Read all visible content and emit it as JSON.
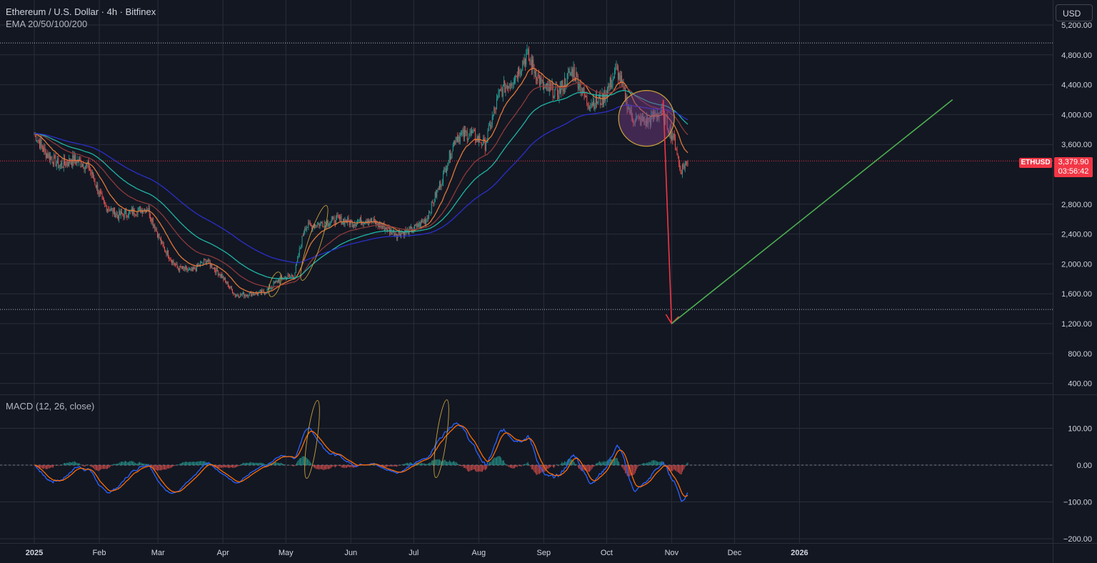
{
  "header": {
    "title": "Ethereum / U.S. Dollar · 4h · Bitfinex",
    "indicator": "EMA 20/50/100/200"
  },
  "currency_button": "USD",
  "last_price": {
    "symbol": "ETHUSD",
    "value": "3,379.90",
    "countdown": "03:56:42"
  },
  "macd_label": "MACD (12, 26, close)",
  "colors": {
    "background": "#131722",
    "grid": "#2a2e39",
    "candle_up": "#26a69a",
    "candle_down": "#ef5350",
    "ema20": "#e0773a",
    "ema50": "#8b3a3a",
    "ema100": "#1fb5a5",
    "ema200": "#2a2fc9",
    "macd_line": "#2962ff",
    "signal_line": "#ff6d00",
    "last_price": "#f23645",
    "down_arrow": "#f23645",
    "up_trend_line": "#4caf50",
    "highlight_circle": "#7b3f8a"
  },
  "chart_data": [
    {
      "type": "candlestick",
      "title": "Ethereum / U.S. Dollar · 4h · Bitfinex",
      "y_axis_ticks": [
        "5,200.00",
        "4,800.00",
        "4,400.00",
        "4,000.00",
        "3,600.00",
        "2,800.00",
        "2,400.00",
        "2,000.00",
        "1,600.00",
        "1,200.00",
        "800.00",
        "400.00"
      ],
      "x_axis_labels": [
        "2025",
        "Feb",
        "Mar",
        "Apr",
        "May",
        "Jun",
        "Jul",
        "Aug",
        "Sep",
        "Oct",
        "Nov",
        "Dec",
        "2026"
      ],
      "ylim": [
        250,
        5400
      ],
      "last_price": 3379.9,
      "horizontal_levels": [
        4960,
        1390
      ],
      "price_path": [
        {
          "x": "2025-01-01",
          "y": 3750
        },
        {
          "x": "2025-01-06",
          "y": 3500
        },
        {
          "x": "2025-01-13",
          "y": 3320
        },
        {
          "x": "2025-01-20",
          "y": 3400
        },
        {
          "x": "2025-01-27",
          "y": 3300
        },
        {
          "x": "2025-02-03",
          "y": 2800
        },
        {
          "x": "2025-02-10",
          "y": 2650
        },
        {
          "x": "2025-02-17",
          "y": 2700
        },
        {
          "x": "2025-02-24",
          "y": 2750
        },
        {
          "x": "2025-03-03",
          "y": 2250
        },
        {
          "x": "2025-03-10",
          "y": 1950
        },
        {
          "x": "2025-03-17",
          "y": 1900
        },
        {
          "x": "2025-03-24",
          "y": 2050
        },
        {
          "x": "2025-03-31",
          "y": 1850
        },
        {
          "x": "2025-04-07",
          "y": 1580
        },
        {
          "x": "2025-04-14",
          "y": 1600
        },
        {
          "x": "2025-04-21",
          "y": 1620
        },
        {
          "x": "2025-04-28",
          "y": 1800
        },
        {
          "x": "2025-05-05",
          "y": 1850
        },
        {
          "x": "2025-05-10",
          "y": 2500
        },
        {
          "x": "2025-05-19",
          "y": 2550
        },
        {
          "x": "2025-05-26",
          "y": 2600
        },
        {
          "x": "2025-06-02",
          "y": 2550
        },
        {
          "x": "2025-06-09",
          "y": 2600
        },
        {
          "x": "2025-06-16",
          "y": 2500
        },
        {
          "x": "2025-06-23",
          "y": 2400
        },
        {
          "x": "2025-06-30",
          "y": 2450
        },
        {
          "x": "2025-07-07",
          "y": 2600
        },
        {
          "x": "2025-07-14",
          "y": 3100
        },
        {
          "x": "2025-07-21",
          "y": 3700
        },
        {
          "x": "2025-07-28",
          "y": 3750
        },
        {
          "x": "2025-08-04",
          "y": 3600
        },
        {
          "x": "2025-08-11",
          "y": 4300
        },
        {
          "x": "2025-08-18",
          "y": 4500
        },
        {
          "x": "2025-08-24",
          "y": 4800
        },
        {
          "x": "2025-09-01",
          "y": 4350
        },
        {
          "x": "2025-09-08",
          "y": 4300
        },
        {
          "x": "2025-09-15",
          "y": 4600
        },
        {
          "x": "2025-09-22",
          "y": 4150
        },
        {
          "x": "2025-09-29",
          "y": 4200
        },
        {
          "x": "2025-10-06",
          "y": 4600
        },
        {
          "x": "2025-10-13",
          "y": 3950
        },
        {
          "x": "2025-10-20",
          "y": 3900
        },
        {
          "x": "2025-10-27",
          "y": 4050
        },
        {
          "x": "2025-11-03",
          "y": 3600
        },
        {
          "x": "2025-11-05",
          "y": 3250
        },
        {
          "x": "2025-11-09",
          "y": 3380
        }
      ],
      "annotations": {
        "down_arrow": {
          "from": {
            "x": "2025-10-28",
            "y": 4200
          },
          "to": {
            "x": "2025-11-01",
            "y": 1200
          }
        },
        "up_line": {
          "from": {
            "x": "2025-11-01",
            "y": 1200
          },
          "to": {
            "x": "2026-03-15",
            "y": 4200
          }
        },
        "circle_center": {
          "x": "2025-10-20",
          "y": 3950
        }
      }
    },
    {
      "type": "line",
      "title": "MACD (12, 26, close)",
      "y_axis_ticks": [
        "100.00",
        "0.00",
        "−100.00",
        "−200.00"
      ],
      "ylim": [
        -210,
        180
      ],
      "zero_line": 0
    }
  ]
}
